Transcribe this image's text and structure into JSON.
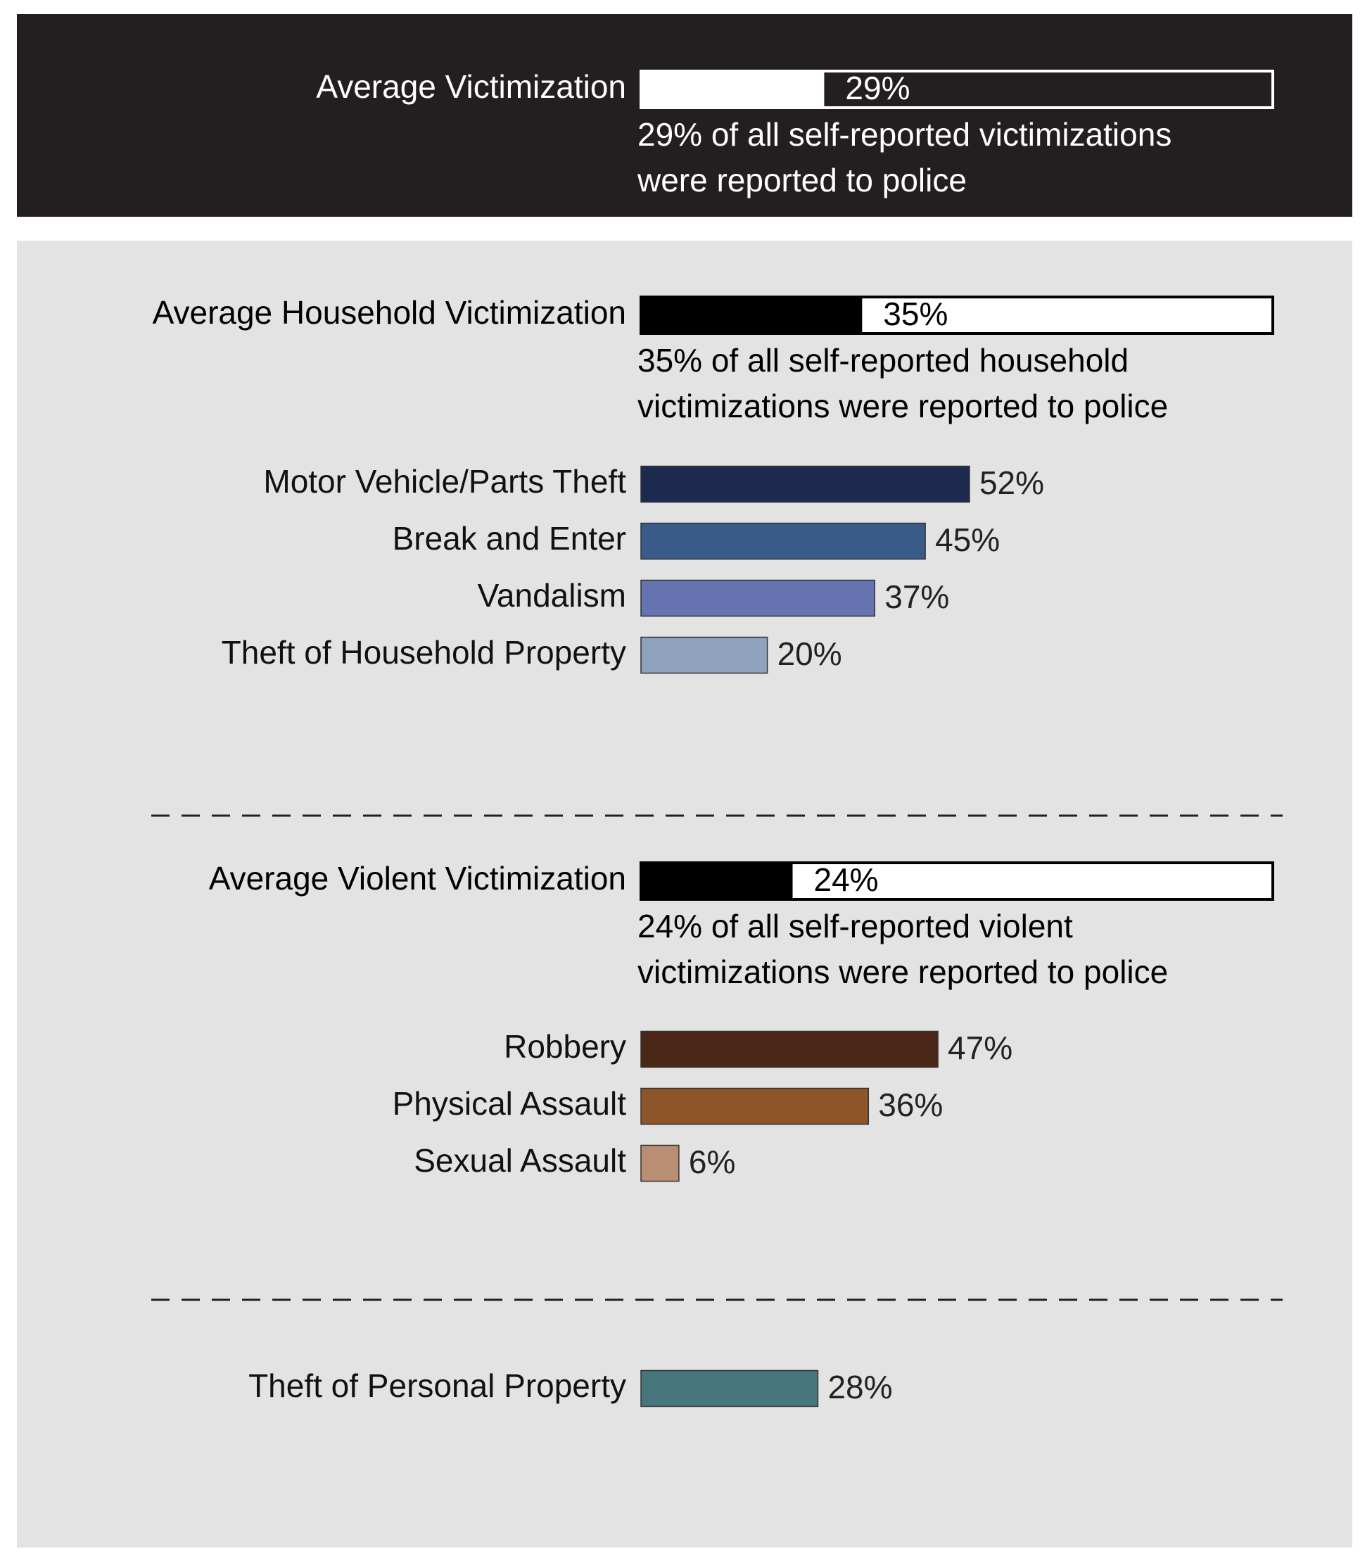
{
  "chart_data": {
    "type": "bar",
    "xlim": [
      0,
      100
    ],
    "average": {
      "name": "Average Victimization",
      "value": 29,
      "value_label": "29%",
      "note": [
        "29% of all self-reported victimizations",
        "were reported to police"
      ]
    },
    "groups": [
      {
        "average": {
          "name": "Average Household Victimization",
          "value": 35,
          "value_label": "35%",
          "note": [
            "35% of all self-reported household",
            "victimizations were reported to police"
          ]
        },
        "categories": [
          "Motor Vehicle/Parts Theft",
          "Break and Enter",
          "Vandalism",
          "Theft of Household Property"
        ],
        "values": [
          52,
          45,
          37,
          20
        ],
        "value_labels": [
          "52%",
          "45%",
          "37%",
          "20%"
        ],
        "colors": [
          "#1b2a4e",
          "#3a5a8a",
          "#6573b1",
          "#8fa2bc"
        ]
      },
      {
        "average": {
          "name": "Average Violent Victimization",
          "value": 24,
          "value_label": "24%",
          "note": [
            "24% of all self-reported violent",
            "victimizations were reported to police"
          ]
        },
        "categories": [
          "Robbery",
          "Physical Assault",
          "Sexual Assault"
        ],
        "values": [
          47,
          36,
          6
        ],
        "value_labels": [
          "47%",
          "36%",
          "6%"
        ],
        "colors": [
          "#4a2616",
          "#8d552a",
          "#b98e75"
        ]
      },
      {
        "categories": [
          "Theft of Personal Property"
        ],
        "values": [
          28
        ],
        "value_labels": [
          "28%"
        ],
        "colors": [
          "#47777c"
        ]
      }
    ]
  }
}
